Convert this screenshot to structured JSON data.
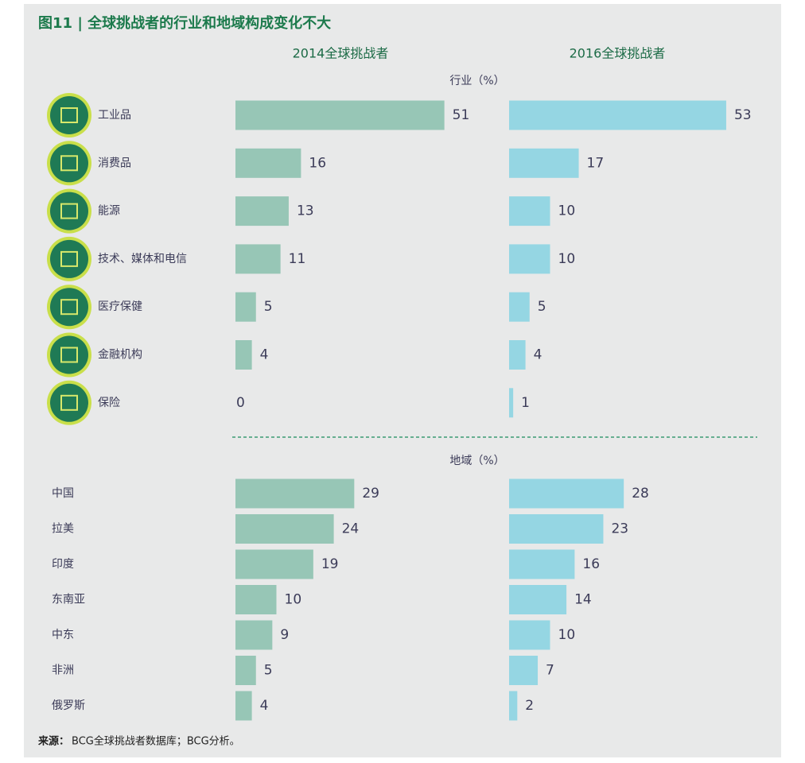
{
  "title": "图11 | 全球挑战者的行业和地域构成变化不大",
  "source_label": "来源：",
  "source": "BCG全球挑战者数据库；BCG分析。",
  "chart_data": [
    {
      "type": "bar",
      "orientation": "horizontal",
      "subtitle": "行业（%）",
      "categories": [
        "工业品",
        "消费品",
        "能源",
        "技术、媒体和电信",
        "医疗保健",
        "金融机构",
        "保险"
      ],
      "series": [
        {
          "name": "2014全球挑战者",
          "color": "#97c6b6",
          "values": [
            51,
            16,
            13,
            11,
            5,
            4,
            0
          ]
        },
        {
          "name": "2016全球挑战者",
          "color": "#95d6e3",
          "values": [
            53,
            17,
            10,
            10,
            5,
            4,
            1
          ]
        }
      ]
    },
    {
      "type": "bar",
      "orientation": "horizontal",
      "subtitle": "地域（%）",
      "categories": [
        "中国",
        "拉美",
        "印度",
        "东南亚",
        "中东",
        "非洲",
        "俄罗斯"
      ],
      "series": [
        {
          "color": "#97c6b6",
          "values": [
            29,
            24,
            19,
            10,
            9,
            5,
            4
          ]
        },
        {
          "color": "#95d6e3",
          "values": [
            28,
            23,
            16,
            14,
            10,
            7,
            2
          ]
        }
      ]
    }
  ]
}
